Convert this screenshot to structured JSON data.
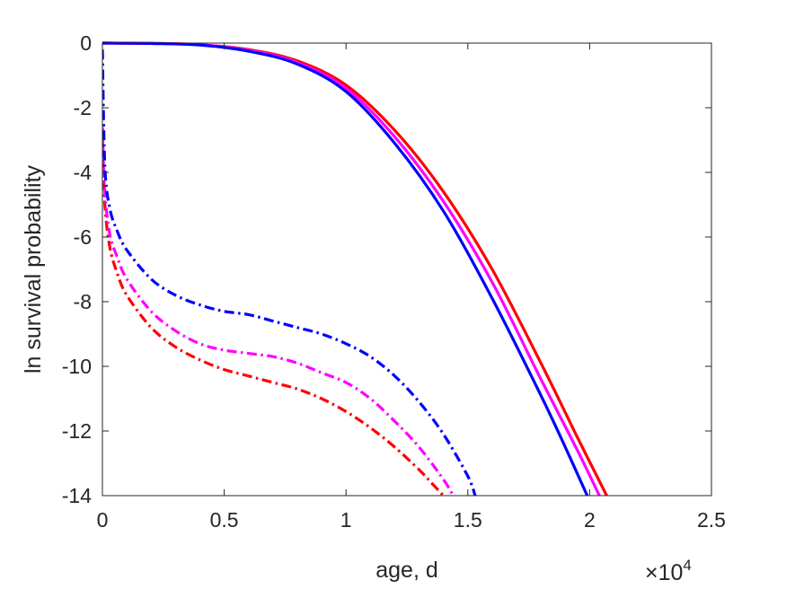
{
  "chart_data": {
    "type": "line",
    "title": "",
    "xlabel": "age, d",
    "ylabel": "ln survival probability",
    "x_exponent_label": {
      "base": "×10",
      "exp": "4"
    },
    "xlim": [
      0,
      25000
    ],
    "ylim": [
      -14,
      0
    ],
    "x_ticks": [
      0,
      5000,
      10000,
      15000,
      20000,
      25000
    ],
    "x_tick_labels": [
      "0",
      "0.5",
      "1",
      "1.5",
      "2",
      "2.5"
    ],
    "y_ticks": [
      0,
      -2,
      -4,
      -6,
      -8,
      -10,
      -12,
      -14
    ],
    "y_tick_labels": [
      "0",
      "-2",
      "-4",
      "-6",
      "-8",
      "-10",
      "-12",
      "-14"
    ],
    "grid": false,
    "series": [
      {
        "color": "#ff0000",
        "style": "solid",
        "x": [
          0,
          2000,
          4000,
          6000,
          8000,
          10000,
          12000,
          14000,
          16000,
          18000,
          19500,
          20700
        ],
        "y": [
          0,
          -0.01,
          -0.05,
          -0.2,
          -0.55,
          -1.3,
          -2.7,
          -4.6,
          -7.0,
          -9.9,
          -12.2,
          -14.0
        ]
      },
      {
        "color": "#ff00ff",
        "style": "solid",
        "x": [
          0,
          2000,
          4000,
          6000,
          8000,
          10000,
          12000,
          14000,
          16000,
          18000,
          19500,
          20400
        ],
        "y": [
          0,
          -0.01,
          -0.05,
          -0.22,
          -0.6,
          -1.4,
          -2.9,
          -4.9,
          -7.4,
          -10.4,
          -12.6,
          -14.0
        ]
      },
      {
        "color": "#0000ff",
        "style": "solid",
        "x": [
          0,
          2000,
          4000,
          6000,
          8000,
          10000,
          12000,
          14000,
          16000,
          18000,
          19000,
          19900
        ],
        "y": [
          0,
          -0.01,
          -0.06,
          -0.25,
          -0.65,
          -1.5,
          -3.1,
          -5.2,
          -7.9,
          -10.9,
          -12.5,
          -14.0
        ]
      },
      {
        "color": "#ff0000",
        "style": "dashdot",
        "x": [
          0,
          100,
          300,
          600,
          1000,
          2000,
          3000,
          4000,
          5000,
          6000,
          7000,
          8000,
          9000,
          10000,
          11000,
          12000,
          13000,
          13500,
          14000
        ],
        "y": [
          -3.0,
          -5.0,
          -6.3,
          -7.1,
          -7.8,
          -8.8,
          -9.4,
          -9.8,
          -10.1,
          -10.3,
          -10.5,
          -10.7,
          -11.0,
          -11.4,
          -11.9,
          -12.5,
          -13.2,
          -13.6,
          -14.0
        ]
      },
      {
        "color": "#ff00ff",
        "style": "dashdot",
        "x": [
          0,
          100,
          300,
          600,
          1000,
          2000,
          3000,
          4000,
          5000,
          6000,
          7000,
          8000,
          9000,
          10000,
          11000,
          12000,
          13000,
          14000,
          14400
        ],
        "y": [
          -2.6,
          -4.6,
          -5.9,
          -6.6,
          -7.3,
          -8.3,
          -8.9,
          -9.3,
          -9.5,
          -9.6,
          -9.7,
          -9.9,
          -10.2,
          -10.5,
          -11.0,
          -11.7,
          -12.5,
          -13.5,
          -14.0
        ]
      },
      {
        "color": "#0000ff",
        "style": "dashdot",
        "x": [
          0,
          100,
          300,
          600,
          1000,
          2000,
          3000,
          4000,
          5000,
          6000,
          7000,
          8000,
          9000,
          10000,
          11000,
          12000,
          13000,
          14000,
          15000,
          15300
        ],
        "y": [
          -0.2,
          -3.8,
          -5.1,
          -5.8,
          -6.4,
          -7.3,
          -7.8,
          -8.1,
          -8.3,
          -8.4,
          -8.6,
          -8.8,
          -9.0,
          -9.3,
          -9.7,
          -10.3,
          -11.1,
          -12.1,
          -13.4,
          -14.0
        ]
      }
    ]
  }
}
